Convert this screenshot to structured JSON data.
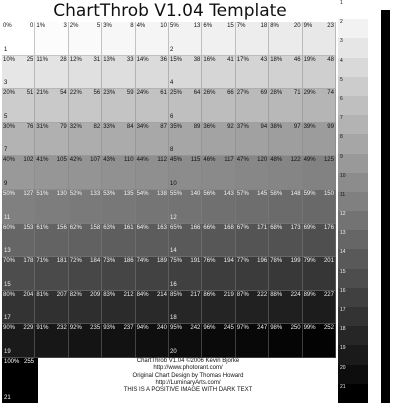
{
  "title": "ChartThrob V1.04 Template",
  "grid": {
    "rows": [
      {
        "left_num": "1",
        "right_num": "2",
        "cells": [
          [
            "0%",
            "0"
          ],
          [
            "1%",
            "3"
          ],
          [
            "2%",
            "5"
          ],
          [
            "3%",
            "8"
          ],
          [
            "4%",
            "10"
          ],
          [
            "5%",
            "13"
          ],
          [
            "6%",
            "15"
          ],
          [
            "7%",
            "18"
          ],
          [
            "8%",
            "20"
          ],
          [
            "9%",
            "23"
          ]
        ]
      },
      {
        "left_num": "3",
        "right_num": "4",
        "cells": [
          [
            "10%",
            "25"
          ],
          [
            "11%",
            "28"
          ],
          [
            "12%",
            "31"
          ],
          [
            "13%",
            "33"
          ],
          [
            "14%",
            "36"
          ],
          [
            "15%",
            "38"
          ],
          [
            "16%",
            "41"
          ],
          [
            "17%",
            "43"
          ],
          [
            "18%",
            "46"
          ],
          [
            "19%",
            "48"
          ]
        ]
      },
      {
        "left_num": "5",
        "right_num": "6",
        "cells": [
          [
            "20%",
            "51"
          ],
          [
            "21%",
            "54"
          ],
          [
            "22%",
            "56"
          ],
          [
            "23%",
            "59"
          ],
          [
            "24%",
            "61"
          ],
          [
            "25%",
            "64"
          ],
          [
            "26%",
            "66"
          ],
          [
            "27%",
            "69"
          ],
          [
            "28%",
            "71"
          ],
          [
            "29%",
            "74"
          ]
        ]
      },
      {
        "left_num": "7",
        "right_num": "8",
        "cells": [
          [
            "30%",
            "76"
          ],
          [
            "31%",
            "79"
          ],
          [
            "32%",
            "82"
          ],
          [
            "33%",
            "84"
          ],
          [
            "34%",
            "87"
          ],
          [
            "35%",
            "89"
          ],
          [
            "36%",
            "92"
          ],
          [
            "37%",
            "94"
          ],
          [
            "38%",
            "97"
          ],
          [
            "39%",
            "99"
          ]
        ]
      },
      {
        "left_num": "9",
        "right_num": "10",
        "cells": [
          [
            "40%",
            "102"
          ],
          [
            "41%",
            "105"
          ],
          [
            "42%",
            "107"
          ],
          [
            "43%",
            "110"
          ],
          [
            "44%",
            "112"
          ],
          [
            "45%",
            "115"
          ],
          [
            "46%",
            "117"
          ],
          [
            "47%",
            "120"
          ],
          [
            "48%",
            "122"
          ],
          [
            "49%",
            "125"
          ]
        ]
      },
      {
        "left_num": "11",
        "right_num": "12",
        "cells": [
          [
            "50%",
            "127"
          ],
          [
            "51%",
            "130"
          ],
          [
            "52%",
            "133"
          ],
          [
            "53%",
            "135"
          ],
          [
            "54%",
            "138"
          ],
          [
            "55%",
            "140"
          ],
          [
            "56%",
            "143"
          ],
          [
            "57%",
            "145"
          ],
          [
            "58%",
            "148"
          ],
          [
            "59%",
            "150"
          ]
        ]
      },
      {
        "left_num": "13",
        "right_num": "14",
        "cells": [
          [
            "60%",
            "153"
          ],
          [
            "61%",
            "156"
          ],
          [
            "62%",
            "158"
          ],
          [
            "63%",
            "161"
          ],
          [
            "64%",
            "163"
          ],
          [
            "65%",
            "166"
          ],
          [
            "66%",
            "168"
          ],
          [
            "67%",
            "171"
          ],
          [
            "68%",
            "173"
          ],
          [
            "69%",
            "176"
          ]
        ]
      },
      {
        "left_num": "15",
        "right_num": "16",
        "cells": [
          [
            "70%",
            "178"
          ],
          [
            "71%",
            "181"
          ],
          [
            "72%",
            "184"
          ],
          [
            "73%",
            "186"
          ],
          [
            "74%",
            "189"
          ],
          [
            "75%",
            "191"
          ],
          [
            "76%",
            "194"
          ],
          [
            "77%",
            "196"
          ],
          [
            "78%",
            "199"
          ],
          [
            "79%",
            "201"
          ]
        ]
      },
      {
        "left_num": "17",
        "right_num": "18",
        "cells": [
          [
            "80%",
            "204"
          ],
          [
            "81%",
            "207"
          ],
          [
            "82%",
            "209"
          ],
          [
            "83%",
            "212"
          ],
          [
            "84%",
            "214"
          ],
          [
            "85%",
            "217"
          ],
          [
            "86%",
            "219"
          ],
          [
            "87%",
            "222"
          ],
          [
            "88%",
            "224"
          ],
          [
            "89%",
            "227"
          ]
        ]
      },
      {
        "left_num": "19",
        "right_num": "20",
        "cells": [
          [
            "90%",
            "229"
          ],
          [
            "91%",
            "232"
          ],
          [
            "92%",
            "235"
          ],
          [
            "93%",
            "237"
          ],
          [
            "94%",
            "240"
          ],
          [
            "95%",
            "242"
          ],
          [
            "96%",
            "245"
          ],
          [
            "97%",
            "247"
          ],
          [
            "98%",
            "250"
          ],
          [
            "99%",
            "252"
          ]
        ]
      }
    ]
  },
  "footer": {
    "swatch_pct": "100%",
    "swatch_val": "255",
    "swatch_num": "21",
    "credits": [
      "ChartThrob V1.04 ©2006 Kevin Bjorke",
      "http://www.photorant.com/",
      "Original Chart Design by Thomas Howard",
      "http://LuminaryArts.com/",
      "THIS IS A POSITIVE IMAGE WITH DARK TEXT"
    ]
  },
  "strip": {
    "steps": [
      "1",
      "2",
      "3",
      "4",
      "5",
      "6",
      "7",
      "8",
      "9",
      "10",
      "11",
      "12",
      "13",
      "14",
      "15",
      "16",
      "17",
      "18",
      "19",
      "20",
      "21"
    ]
  }
}
